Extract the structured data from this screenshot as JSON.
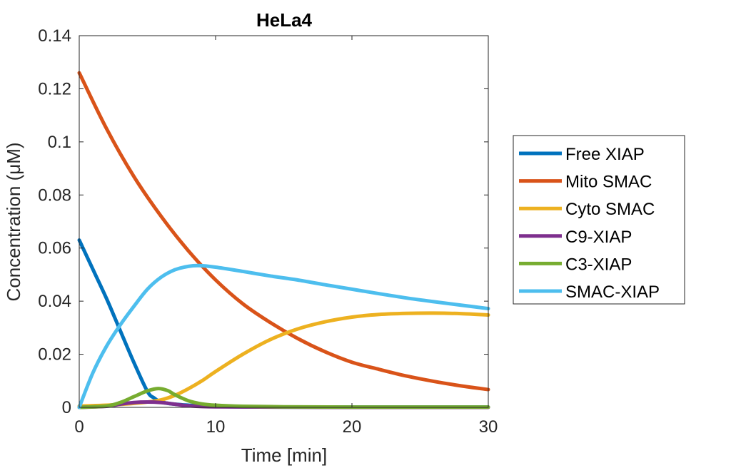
{
  "chart_data": {
    "type": "line",
    "title": "HeLa4",
    "xlabel": "Time [min]",
    "ylabel": "Concentration (μM)",
    "xlim": [
      0,
      30
    ],
    "ylim": [
      0,
      0.14
    ],
    "xticks": [
      0,
      10,
      20,
      30
    ],
    "xtick_labels": [
      "0",
      "10",
      "20",
      "30"
    ],
    "yticks": [
      0,
      0.02,
      0.04,
      0.06,
      0.08,
      0.1,
      0.12,
      0.14
    ],
    "ytick_labels": [
      "0",
      "0.02",
      "0.04",
      "0.06",
      "0.08",
      "0.1",
      "0.12",
      "0.14"
    ],
    "grid": false,
    "legend_position": "outside-right",
    "series": [
      {
        "name": "Free XIAP",
        "color": "#0072BD",
        "x": [
          0,
          1,
          2,
          3,
          4,
          5,
          5.5,
          6,
          7,
          8,
          9,
          10,
          12,
          15,
          20,
          25,
          30
        ],
        "y": [
          0.063,
          0.052,
          0.041,
          0.029,
          0.017,
          0.006,
          0.0035,
          0.002,
          0.0012,
          0.0008,
          0.0005,
          0.0003,
          0.0002,
          0.0001,
          0.0001,
          0.0001,
          0.0001
        ]
      },
      {
        "name": "Mito SMAC",
        "color": "#D95319",
        "x": [
          0,
          2,
          4,
          6,
          8,
          10,
          12,
          14,
          16,
          18,
          20,
          22,
          24,
          26,
          28,
          30
        ],
        "y": [
          0.126,
          0.105,
          0.087,
          0.072,
          0.059,
          0.048,
          0.039,
          0.032,
          0.026,
          0.021,
          0.017,
          0.0143,
          0.0118,
          0.0098,
          0.0081,
          0.0067
        ]
      },
      {
        "name": "Cyto SMAC",
        "color": "#EDB120",
        "x": [
          0,
          2,
          4,
          5,
          6,
          7,
          8,
          9,
          10,
          12,
          14,
          16,
          18,
          20,
          22,
          24,
          26,
          28,
          30
        ],
        "y": [
          0.0005,
          0.0008,
          0.0015,
          0.002,
          0.0028,
          0.0045,
          0.007,
          0.01,
          0.0135,
          0.02,
          0.0255,
          0.0295,
          0.0322,
          0.034,
          0.035,
          0.0354,
          0.0355,
          0.0353,
          0.0348
        ]
      },
      {
        "name": "C9-XIAP",
        "color": "#7E2F8E",
        "x": [
          0,
          2,
          3,
          4,
          5,
          6,
          7,
          8,
          10,
          15,
          20,
          25,
          30
        ],
        "y": [
          0,
          0.0004,
          0.0012,
          0.0018,
          0.002,
          0.0018,
          0.0012,
          0.0006,
          0.0002,
          0.0001,
          0,
          0,
          0
        ]
      },
      {
        "name": "C3-XIAP",
        "color": "#77AC30",
        "x": [
          0,
          2,
          3,
          4,
          5,
          5.8,
          6.5,
          7,
          8,
          9,
          10,
          12,
          15,
          20,
          25,
          30
        ],
        "y": [
          0,
          0.0005,
          0.0018,
          0.004,
          0.0062,
          0.0071,
          0.0063,
          0.0048,
          0.0025,
          0.0013,
          0.0008,
          0.0004,
          0.0002,
          0.0001,
          0.0001,
          0.0001
        ]
      },
      {
        "name": "SMAC-XIAP",
        "color": "#4DBEEE",
        "x": [
          0,
          1,
          2,
          3,
          4,
          5,
          6,
          7,
          8,
          8.8,
          10,
          12,
          14,
          16,
          18,
          20,
          22,
          24,
          26,
          28,
          30
        ],
        "y": [
          0,
          0.013,
          0.023,
          0.031,
          0.038,
          0.0445,
          0.049,
          0.0518,
          0.0531,
          0.0534,
          0.0528,
          0.0512,
          0.0495,
          0.048,
          0.0462,
          0.0445,
          0.0428,
          0.0412,
          0.0398,
          0.0385,
          0.0372
        ]
      }
    ]
  }
}
